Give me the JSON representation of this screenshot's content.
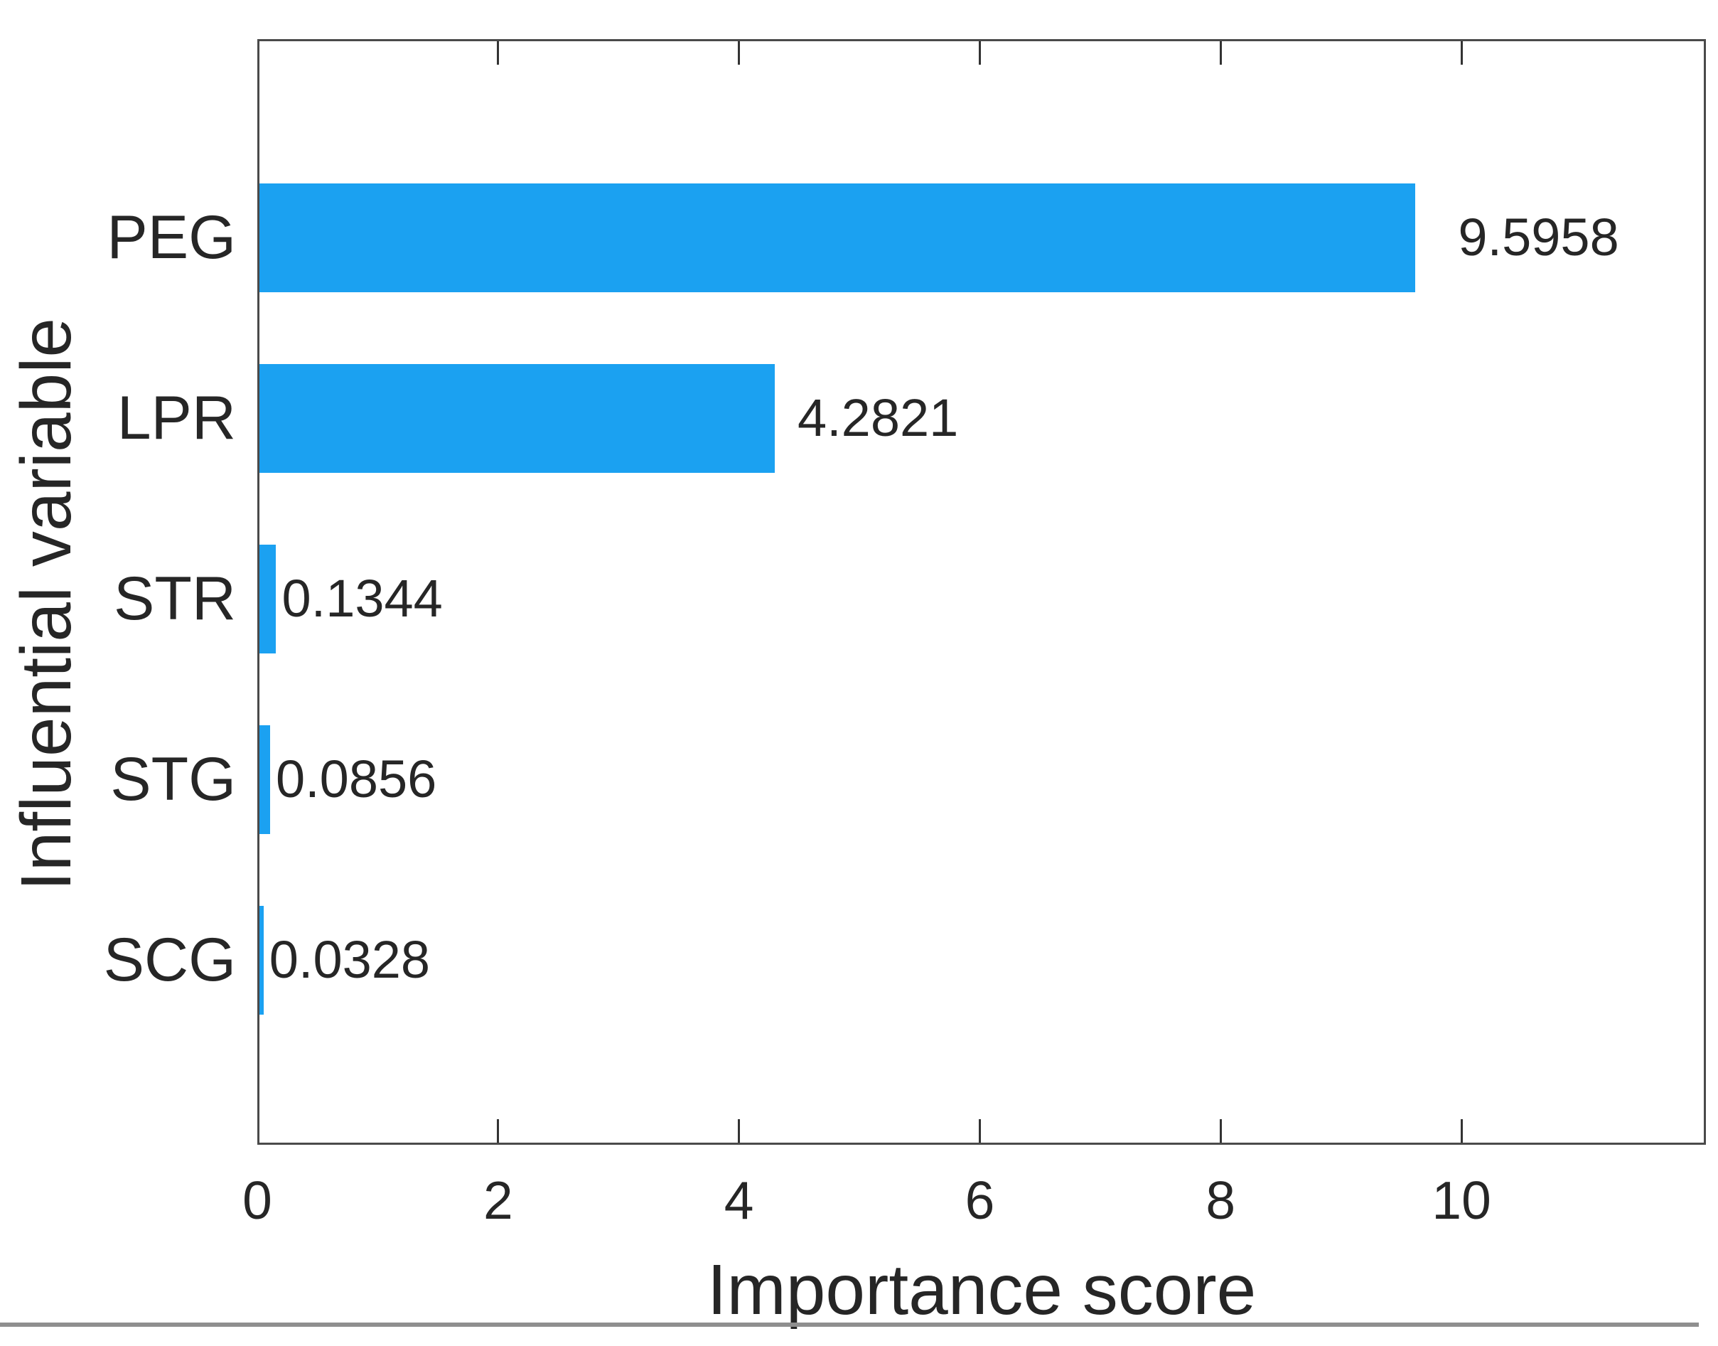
{
  "chart_data": {
    "type": "bar",
    "orientation": "horizontal",
    "title": "",
    "xlabel": "Importance score",
    "ylabel": "Influential variable",
    "categories": [
      "PEG",
      "LPR",
      "STR",
      "STG",
      "SCG"
    ],
    "values": [
      9.5958,
      4.2821,
      0.1344,
      0.0856,
      0.0328
    ],
    "value_labels": [
      "9.5958",
      "4.2821",
      "0.1344",
      "0.0856",
      "0.0328"
    ],
    "xticks": [
      0,
      2,
      4,
      6,
      8,
      10
    ],
    "xtick_labels": [
      "0",
      "2",
      "4",
      "6",
      "8",
      "10"
    ],
    "xlim": [
      0,
      12.03
    ],
    "grid": false,
    "legend_position": "none",
    "bar_color": "#1ba1f1",
    "text_color": "#262626",
    "axis_color": "#4a4a4a",
    "tick_color": "#333333",
    "bottom_rule_color": "#8f8f8f"
  }
}
